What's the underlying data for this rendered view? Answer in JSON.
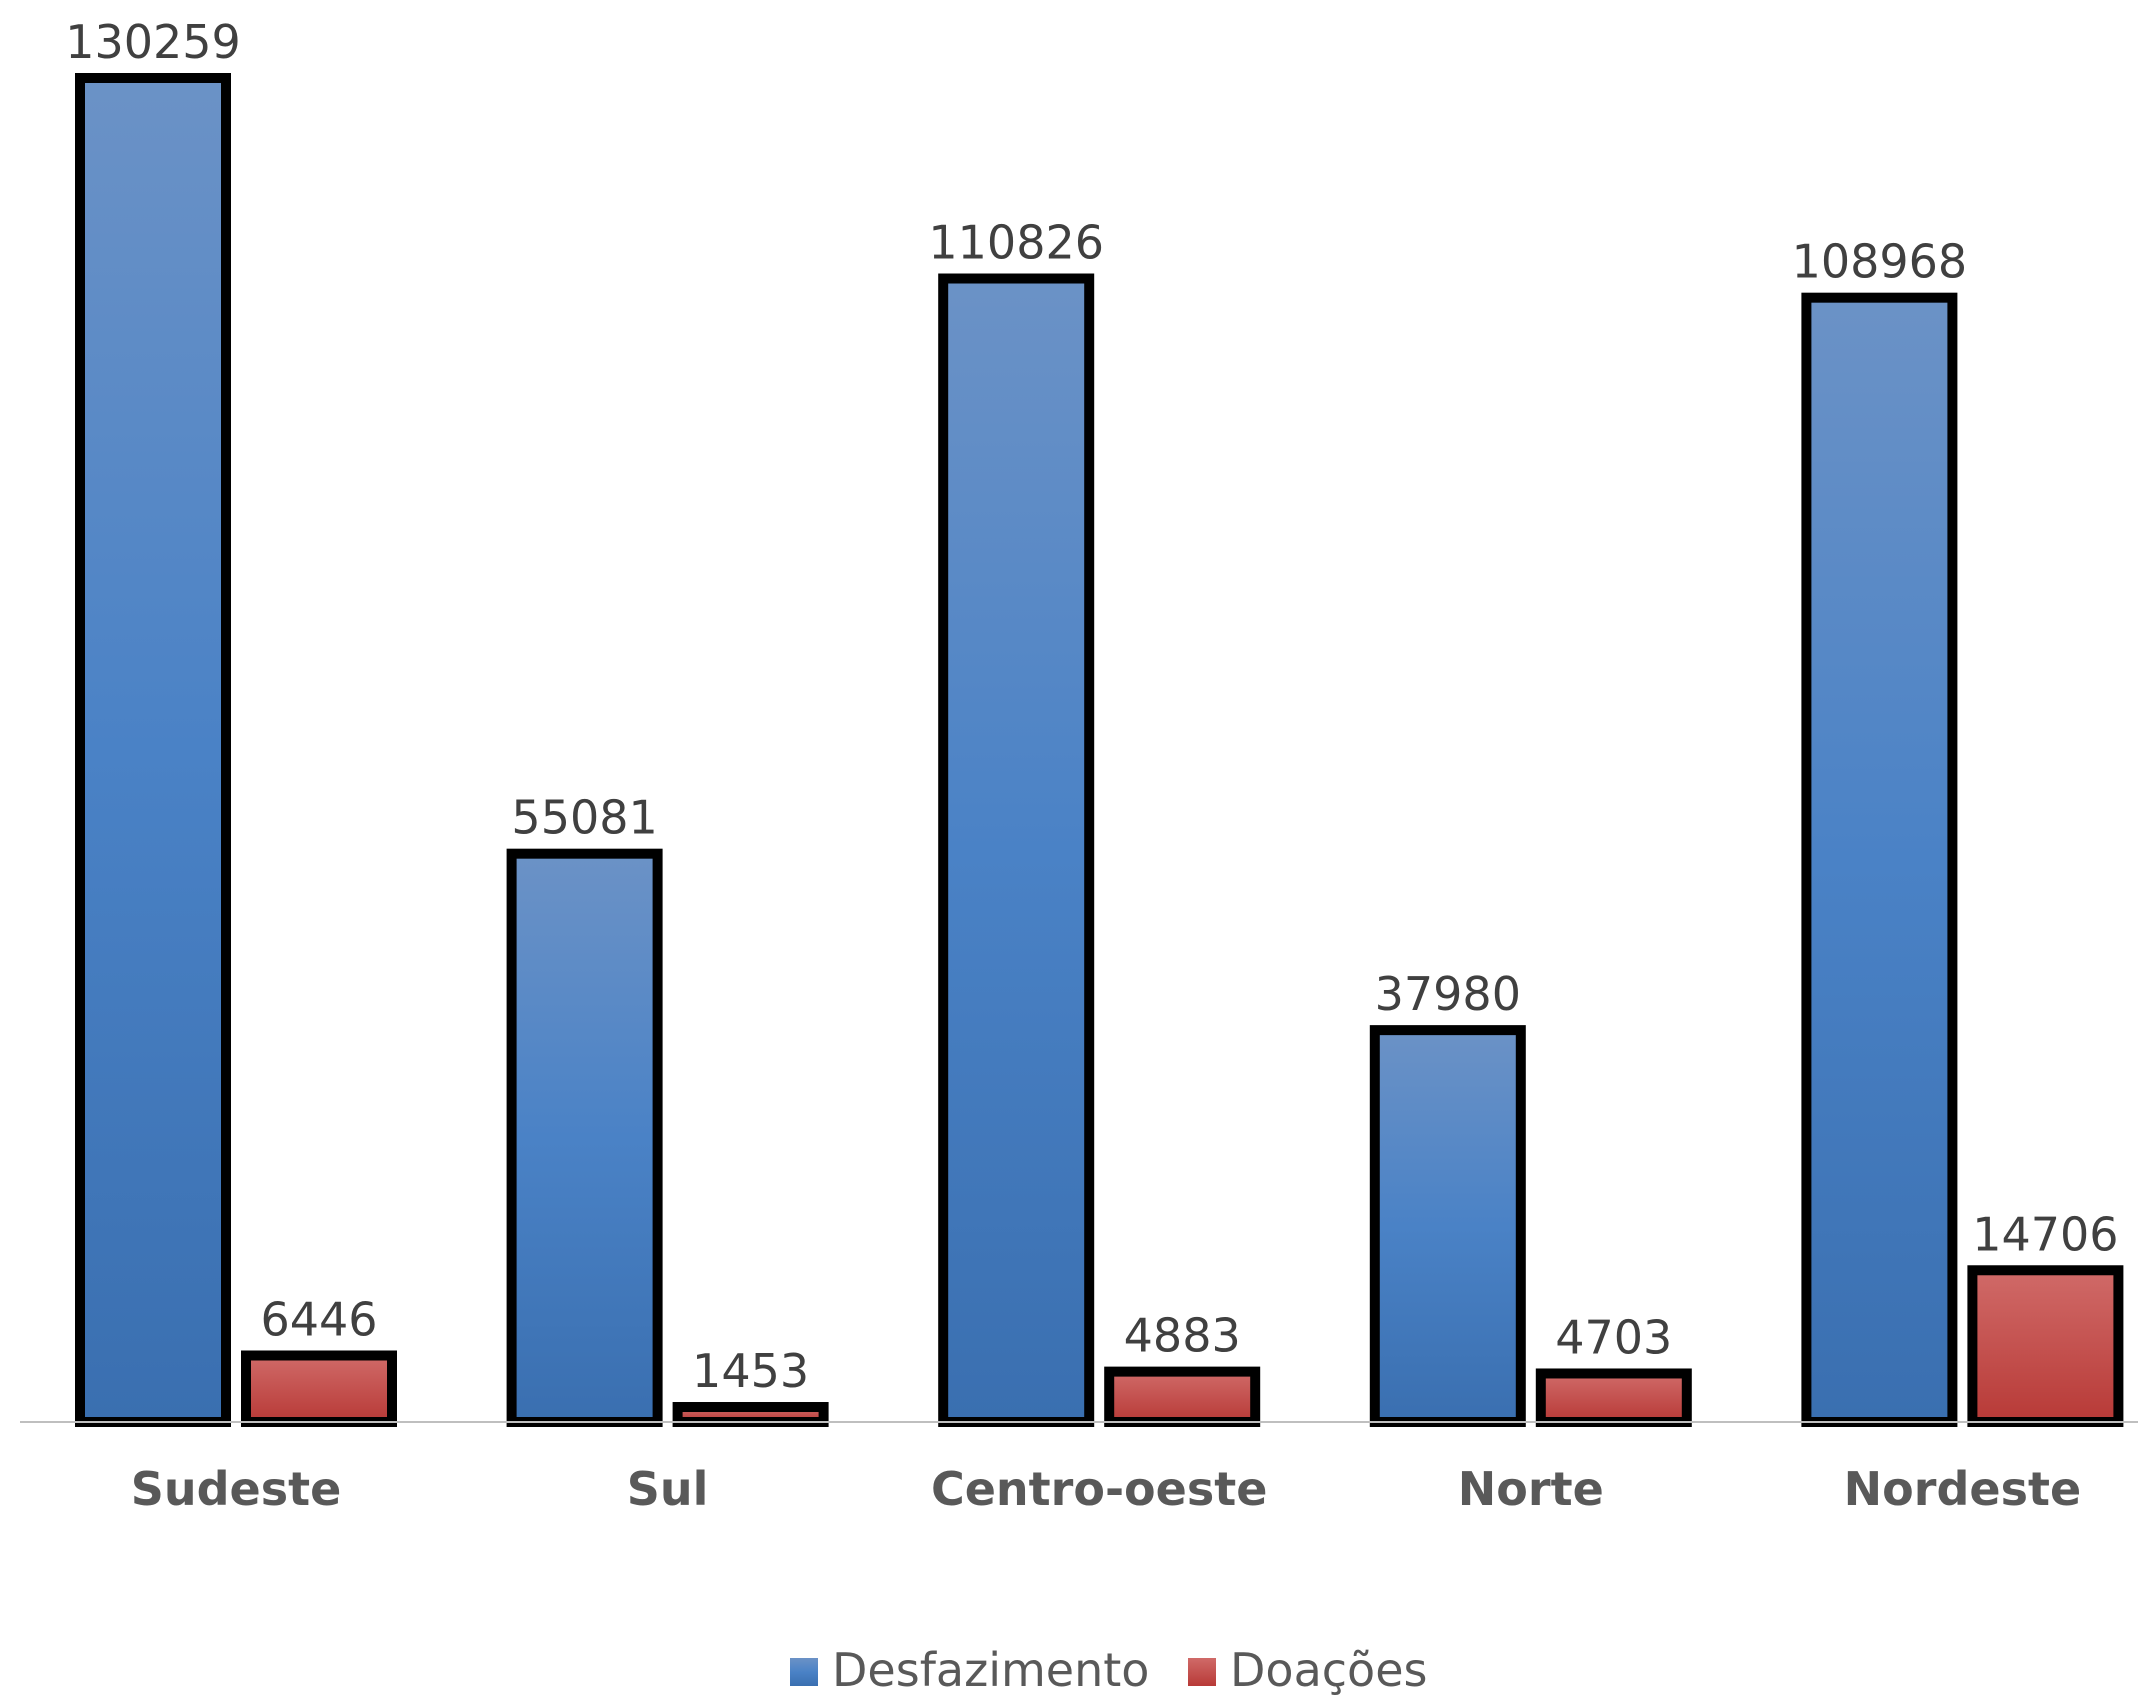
{
  "chart_data": {
    "type": "bar",
    "categories": [
      "Sudeste",
      "Sul",
      "Centro-oeste",
      "Norte",
      "Nordeste"
    ],
    "series": [
      {
        "name": "Desfazimento",
        "values": [
          130259,
          55081,
          110826,
          37980,
          108968
        ],
        "color": "#4a7fc1"
      },
      {
        "name": "Doações",
        "values": [
          6446,
          1453,
          4883,
          4703,
          14706
        ],
        "color": "#c0504d"
      }
    ],
    "ylim": [
      0,
      130259
    ],
    "grid": false,
    "legend_position": "bottom",
    "data_labels": true
  }
}
